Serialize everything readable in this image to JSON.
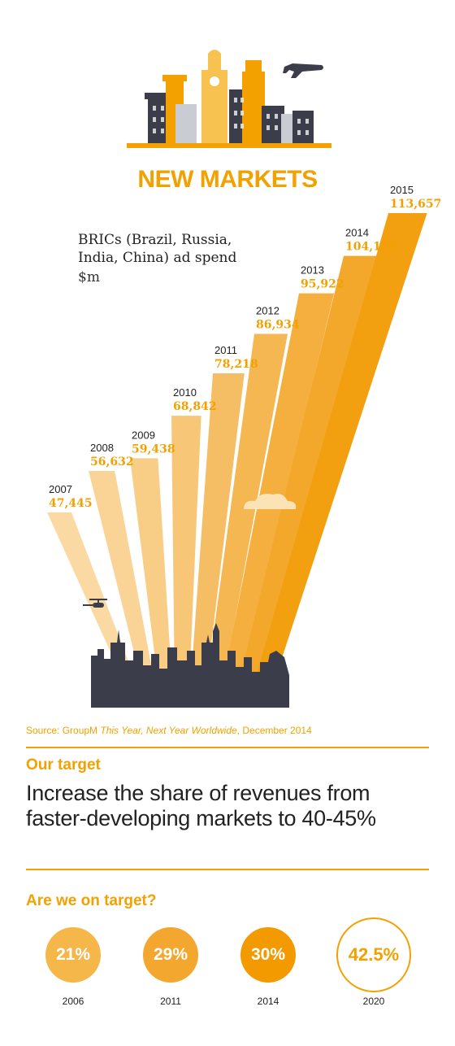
{
  "title": "NEW MARKETS",
  "chart_data": {
    "type": "bar",
    "subtitle": "BRICs (Brazil, Russia, India, China) ad spend",
    "unit": "$m",
    "categories": [
      "2007",
      "2008",
      "2009",
      "2010",
      "2011",
      "2012",
      "2013",
      "2014",
      "2015"
    ],
    "values": [
      47445,
      56632,
      59438,
      68842,
      78218,
      86934,
      95922,
      104189,
      113657
    ],
    "value_labels": [
      "47,445",
      "56,632",
      "59,438",
      "68,842",
      "78,218",
      "86,934",
      "95,922",
      "104,189",
      "113,657"
    ],
    "colors": [
      "#fad9a3",
      "#f9d496",
      "#f8cd85",
      "#f7c676",
      "#f6be64",
      "#f5b752",
      "#f4af3f",
      "#f3a82b",
      "#f2a00f"
    ]
  },
  "source": {
    "prefix": "Source: GroupM ",
    "italic": "This Year, Next Year Worldwide",
    "suffix": ", December 2014"
  },
  "target": {
    "label": "Our target",
    "text": "Increase the share of revenues from faster-developing markets to 40-45%"
  },
  "on_target": {
    "label": "Are we on target?",
    "items": [
      {
        "value": "21%",
        "year": "2006",
        "color": "#f5b74a"
      },
      {
        "value": "29%",
        "year": "2011",
        "color": "#f3a72e"
      },
      {
        "value": "30%",
        "year": "2014",
        "color": "#f29a00"
      },
      {
        "value": "42.5%",
        "year": "2020",
        "color": "#ffffff"
      }
    ]
  },
  "colors": {
    "accent": "#f3a100",
    "skyline": "#3b3e4a"
  }
}
